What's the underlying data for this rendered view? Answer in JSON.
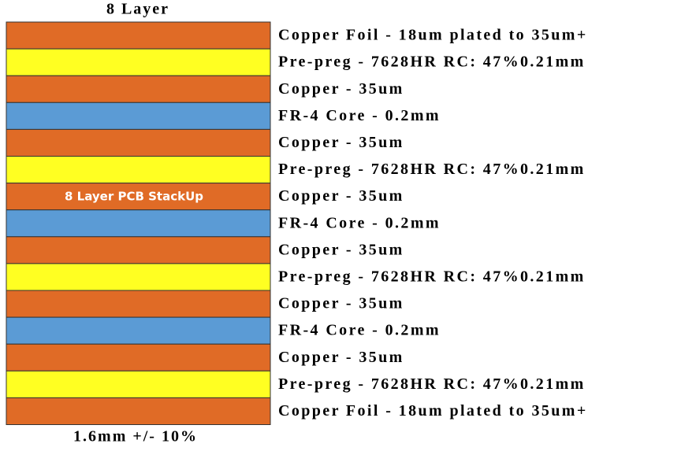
{
  "title": "8 Layer",
  "overlay": "8 Layer PCB StackUp",
  "thickness": "1.6mm +/- 10%",
  "layers": [
    {
      "label": "Copper Foil - 18um plated to 35um+",
      "color": "#e06b26"
    },
    {
      "label": "Pre-preg - 7628HR RC: 47%0.21mm",
      "color": "#ffff22"
    },
    {
      "label": "Copper - 35um",
      "color": "#e06b26"
    },
    {
      "label": "FR-4 Core - 0.2mm",
      "color": "#5b9bd5"
    },
    {
      "label": "Copper - 35um",
      "color": "#e06b26"
    },
    {
      "label": "Pre-preg - 7628HR RC: 47%0.21mm",
      "color": "#ffff22"
    },
    {
      "label": "Copper - 35um",
      "color": "#e06b26"
    },
    {
      "label": "FR-4 Core - 0.2mm",
      "color": "#5b9bd5"
    },
    {
      "label": "Copper - 35um",
      "color": "#e06b26"
    },
    {
      "label": "Pre-preg - 7628HR RC: 47%0.21mm",
      "color": "#ffff22"
    },
    {
      "label": "Copper - 35um",
      "color": "#e06b26"
    },
    {
      "label": "FR-4 Core - 0.2mm",
      "color": "#5b9bd5"
    },
    {
      "label": "Copper - 35um",
      "color": "#e06b26"
    },
    {
      "label": "Pre-preg - 7628HR RC: 47%0.21mm",
      "color": "#ffff22"
    },
    {
      "label": "Copper Foil - 18um plated to 35um+",
      "color": "#e06b26"
    }
  ]
}
